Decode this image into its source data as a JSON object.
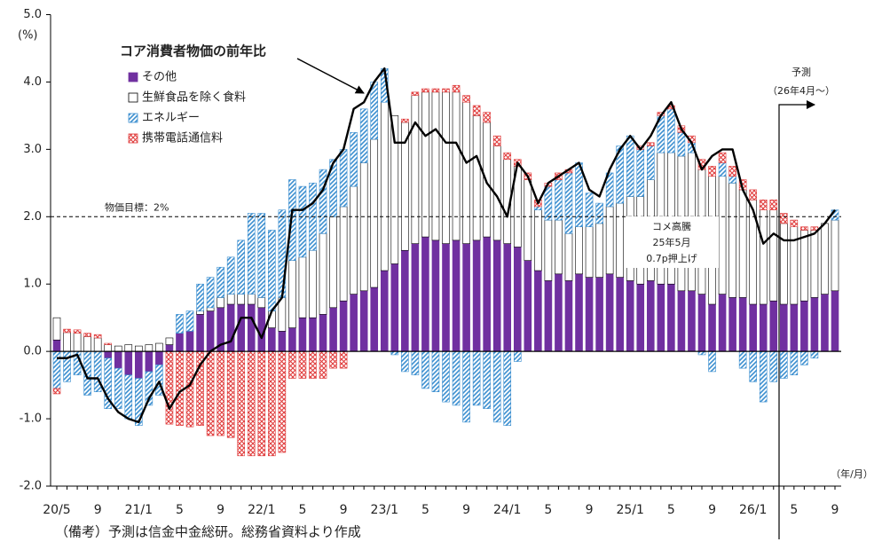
{
  "chart_data": {
    "type": "bar",
    "subtype": "stacked",
    "y_unit": "(%)",
    "x_label": "（年/月）",
    "footnote": "（備考）予測は信金中金総研。総務省資料より作成",
    "categories": [
      "20/5",
      null,
      null,
      null,
      "9",
      null,
      null,
      null,
      "21/1",
      null,
      null,
      null,
      "5",
      null,
      null,
      null,
      "9",
      null,
      null,
      null,
      "22/1",
      null,
      null,
      null,
      "5",
      null,
      null,
      null,
      "9",
      null,
      null,
      null,
      "23/1",
      null,
      null,
      null,
      "5",
      null,
      null,
      null,
      "9",
      null,
      null,
      null,
      "24/1",
      null,
      null,
      null,
      "5",
      null,
      null,
      null,
      "9",
      null,
      null,
      null,
      "25/1",
      null,
      null,
      null,
      "5",
      null,
      null,
      null,
      "9",
      null,
      null,
      null,
      "26/1",
      null,
      null,
      null,
      "5",
      null,
      null,
      null,
      "9"
    ],
    "series": [
      {
        "name": "その他",
        "color": "#7030a0",
        "fill": "solid",
        "values": [
          0.17,
          0,
          0,
          0,
          0,
          -0.1,
          -0.25,
          -0.35,
          -0.4,
          -0.3,
          -0.2,
          0.1,
          0.27,
          0.3,
          0.55,
          0.6,
          0.65,
          0.7,
          0.7,
          0.7,
          0.65,
          0.35,
          0.3,
          0.35,
          0.5,
          0.5,
          0.55,
          0.65,
          0.75,
          0.85,
          0.9,
          0.95,
          1.2,
          1.3,
          1.5,
          1.6,
          1.7,
          1.65,
          1.6,
          1.65,
          1.6,
          1.65,
          1.7,
          1.65,
          1.6,
          1.55,
          1.35,
          1.2,
          1.05,
          1.15,
          1.05,
          1.15,
          1.1,
          1.1,
          1.15,
          1.1,
          1.05,
          1.0,
          1.05,
          1.0,
          1.0,
          0.9,
          0.9,
          0.85,
          0.7,
          0.85,
          0.8,
          0.8,
          0.7,
          0.7,
          0.75,
          0.7,
          0.7,
          0.75,
          0.8,
          0.85,
          0.9
        ]
      },
      {
        "name": "生鮮食品を除く食料",
        "color": "#ffffff",
        "fill": "solid",
        "values": [
          0.33,
          0.28,
          0.27,
          0.22,
          0.2,
          0.1,
          0.08,
          0.1,
          0.08,
          0.1,
          0.12,
          0.1,
          0,
          0,
          0.05,
          0.05,
          0.15,
          0.15,
          0.15,
          0.15,
          0.15,
          0.25,
          0.5,
          1.0,
          0.9,
          1.0,
          1.2,
          1.35,
          1.4,
          1.6,
          1.9,
          2.2,
          2.5,
          2.2,
          1.9,
          2.2,
          2.15,
          2.2,
          2.25,
          2.2,
          2.1,
          1.85,
          1.7,
          1.4,
          1.25,
          1.2,
          1.2,
          0.9,
          0.9,
          0.8,
          0.7,
          0.7,
          0.75,
          0.8,
          1.0,
          1.1,
          1.25,
          1.3,
          1.5,
          1.95,
          1.95,
          2.0,
          2.05,
          1.85,
          1.9,
          1.75,
          1.7,
          1.6,
          1.55,
          1.4,
          1.35,
          1.2,
          1.15,
          1.05,
          1.0,
          1.05,
          1.05
        ]
      },
      {
        "name": "エネルギー",
        "color": "#3c8fd0",
        "fill": "diagonal",
        "values": [
          -0.55,
          -0.45,
          -0.35,
          -0.65,
          -0.6,
          -0.75,
          -0.6,
          -0.65,
          -0.7,
          -0.5,
          -0.45,
          0,
          0.28,
          0.3,
          0.4,
          0.45,
          0.45,
          0.55,
          0.8,
          1.2,
          1.25,
          1.2,
          1.3,
          1.2,
          1.05,
          1.0,
          0.95,
          0.85,
          0.85,
          0.8,
          0.8,
          0.85,
          0.5,
          -0.05,
          -0.3,
          -0.35,
          -0.55,
          -0.6,
          -0.75,
          -0.8,
          -1.05,
          -0.8,
          -0.85,
          -1.05,
          -1.1,
          -0.15,
          0,
          0.05,
          0.5,
          0.6,
          0.9,
          0.95,
          0.5,
          0.3,
          0.5,
          0.85,
          0.9,
          0.7,
          0.5,
          0.55,
          0.65,
          0.35,
          0.15,
          -0.05,
          -0.3,
          0.2,
          0.1,
          -0.25,
          -0.45,
          -0.75,
          -0.45,
          -0.4,
          -0.35,
          -0.2,
          -0.1,
          0,
          0.15
        ]
      },
      {
        "name": "携帯電話通信料",
        "color": "#e03c3c",
        "fill": "cross",
        "values": [
          -0.08,
          0.05,
          0.05,
          0.05,
          0.05,
          0.02,
          0,
          0,
          0,
          0,
          0,
          -1.08,
          -1.1,
          -1.12,
          -1.1,
          -1.25,
          -1.25,
          -1.28,
          -1.55,
          -1.55,
          -1.55,
          -1.55,
          -1.5,
          -0.4,
          -0.4,
          -0.4,
          -0.4,
          -0.25,
          -0.25,
          0,
          0,
          0,
          0,
          0,
          0.05,
          0.05,
          0.05,
          0.05,
          0.05,
          0.1,
          0.1,
          0.15,
          0.15,
          0.15,
          0.1,
          0.1,
          0.1,
          0.1,
          0.05,
          0.1,
          0.05,
          0,
          0,
          0,
          0,
          0,
          0,
          0.05,
          0.05,
          0.05,
          0.05,
          0.1,
          0.1,
          0.15,
          0.15,
          0.15,
          0.15,
          0.15,
          0.15,
          0.15,
          0.15,
          0.15,
          0.1,
          0.05,
          0.05,
          0,
          0
        ]
      }
    ],
    "line": {
      "name": "コア消費者物価の前年比",
      "color": "#000000",
      "values": [
        -0.1,
        -0.1,
        -0.05,
        -0.4,
        -0.4,
        -0.7,
        -0.9,
        -1.0,
        -1.05,
        -0.7,
        -0.45,
        -0.85,
        -0.6,
        -0.5,
        -0.2,
        0,
        0.1,
        0.15,
        0.5,
        0.5,
        0.2,
        0.6,
        0.8,
        2.1,
        2.1,
        2.2,
        2.4,
        2.8,
        3.0,
        3.6,
        3.7,
        4.0,
        4.2,
        3.1,
        3.1,
        3.4,
        3.2,
        3.3,
        3.1,
        3.1,
        2.8,
        2.9,
        2.5,
        2.3,
        2.0,
        2.8,
        2.6,
        2.2,
        2.5,
        2.6,
        2.7,
        2.8,
        2.4,
        2.3,
        2.7,
        3.0,
        3.2,
        3.0,
        3.2,
        3.5,
        3.7,
        3.3,
        3.1,
        2.7,
        2.9,
        3.0,
        3.0,
        2.4,
        2.1,
        1.6,
        1.75,
        1.65,
        1.65,
        1.7,
        1.75,
        1.9,
        2.1
      ]
    },
    "target_line": {
      "value": 2,
      "label": "物価目標：2%"
    },
    "forecast": {
      "label": "予測",
      "period": "（26年4月～）"
    },
    "annotation": [
      "コメ高騰",
      "25年5月",
      "0.7p押上げ"
    ],
    "ylim": [
      -2,
      5
    ],
    "yticks": [
      {
        "value": -2,
        "label": "-2.0"
      },
      {
        "value": -1,
        "label": "-1.0"
      },
      {
        "value": 0,
        "label": "0.0"
      },
      {
        "value": 1,
        "label": "1.0"
      },
      {
        "value": 2,
        "label": "2.0"
      },
      {
        "value": 3,
        "label": "3.0"
      },
      {
        "value": 4,
        "label": "4.0"
      },
      {
        "value": 5,
        "label": "5.0"
      }
    ]
  }
}
